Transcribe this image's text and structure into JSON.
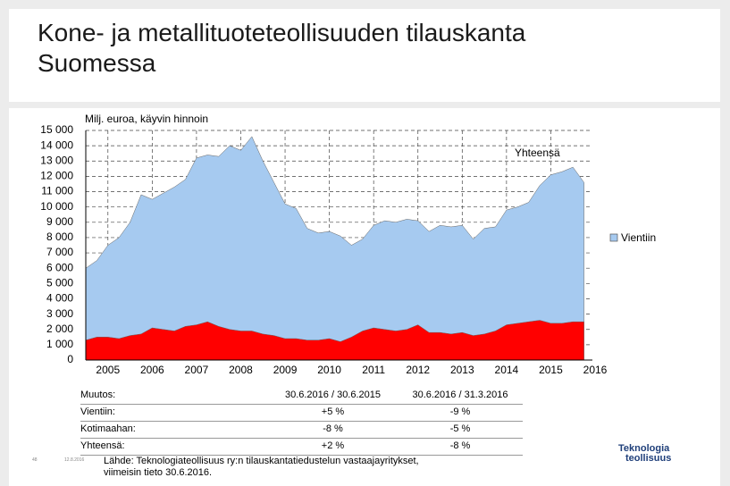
{
  "slide": {
    "title": "Kone- ja metallituoteteollisuuden tilauskanta Suomessa"
  },
  "chart_data": {
    "type": "area",
    "subtitle": "Milj. euroa, käyvin hinnoin",
    "annotation": "Yhteensä",
    "x": [
      2004.5,
      2004.75,
      2005,
      2005.25,
      2005.5,
      2005.75,
      2006,
      2006.25,
      2006.5,
      2006.75,
      2007,
      2007.25,
      2007.5,
      2007.75,
      2008,
      2008.25,
      2008.5,
      2008.75,
      2009,
      2009.25,
      2009.5,
      2009.75,
      2010,
      2010.25,
      2010.5,
      2010.75,
      2011,
      2011.25,
      2011.5,
      2011.75,
      2012,
      2012.25,
      2012.5,
      2012.75,
      2013,
      2013.25,
      2013.5,
      2013.75,
      2014,
      2014.25,
      2014.5,
      2014.75,
      2015,
      2015.25,
      2015.5,
      2015.75
    ],
    "series": [
      {
        "name": "Vientiin",
        "color": "#a6caf0",
        "values": [
          6000,
          6500,
          7500,
          8000,
          9000,
          10800,
          10500,
          10900,
          11300,
          11800,
          13200,
          13400,
          13300,
          14000,
          13700,
          14600,
          13000,
          11600,
          10200,
          9900,
          8600,
          8300,
          8400,
          8100,
          7500,
          7900,
          8800,
          9100,
          9000,
          9200,
          9100,
          8400,
          8800,
          8700,
          8800,
          7900,
          8600,
          8700,
          9800,
          10000,
          10300,
          11400,
          12100,
          12300,
          12600,
          11600
        ]
      },
      {
        "color": "#ff0000",
        "values": [
          1300,
          1500,
          1500,
          1400,
          1600,
          1700,
          2100,
          2000,
          1900,
          2200,
          2300,
          2500,
          2200,
          2000,
          1900,
          1900,
          1700,
          1600,
          1400,
          1400,
          1300,
          1300,
          1400,
          1200,
          1500,
          1900,
          2100,
          2000,
          1900,
          2000,
          2300,
          1800,
          1800,
          1700,
          1800,
          1600,
          1700,
          1900,
          2300,
          2400,
          2500,
          2600,
          2400,
          2400,
          2500,
          2500
        ]
      }
    ],
    "xlim": [
      2004.5,
      2016
    ],
    "xticks": [
      2005,
      2006,
      2007,
      2008,
      2009,
      2010,
      2011,
      2012,
      2013,
      2014,
      2015,
      2016
    ],
    "ylim": [
      0,
      15000
    ],
    "yticks": [
      0,
      {
        "value": 1000,
        "label": "1 000"
      },
      {
        "value": 2000,
        "label": "2 000"
      },
      {
        "value": 3000,
        "label": "3 000"
      },
      {
        "value": 4000,
        "label": "4 000"
      },
      {
        "value": 5000,
        "label": "5 000"
      },
      {
        "value": 6000,
        "label": "6 000"
      },
      {
        "value": 7000,
        "label": "7 000"
      },
      {
        "value": 8000,
        "label": "8 000"
      },
      {
        "value": 9000,
        "label": "9 000"
      },
      {
        "value": 10000,
        "label": "10 000"
      },
      {
        "value": 11000,
        "label": "11 000"
      },
      {
        "value": 12000,
        "label": "12 000"
      },
      {
        "value": 13000,
        "label": "13 000"
      },
      {
        "value": 14000,
        "label": "14 000"
      },
      {
        "value": 15000,
        "label": "15 000"
      }
    ],
    "grid": true,
    "legend": "right"
  },
  "table": {
    "header": [
      "Muutos:",
      "30.6.2016 / 30.6.2015",
      "30.6.2016 / 31.3.2016"
    ],
    "rows": [
      [
        "Vientiin:",
        "+5 %",
        "-9 %"
      ],
      [
        "Kotimaahan:",
        "-8 %",
        "-5 %"
      ],
      [
        "Yhteensä:",
        "+2 %",
        "-8 %"
      ]
    ]
  },
  "footer": {
    "page": "48",
    "date": "12.8.2016",
    "source": "Lähde: Teknologiateollisuus ry:n tilauskantatiedustelun vastaajayritykset, viimeisin tieto 30.6.2016.",
    "logo": [
      "Teknologia",
      "teollisuus"
    ]
  }
}
